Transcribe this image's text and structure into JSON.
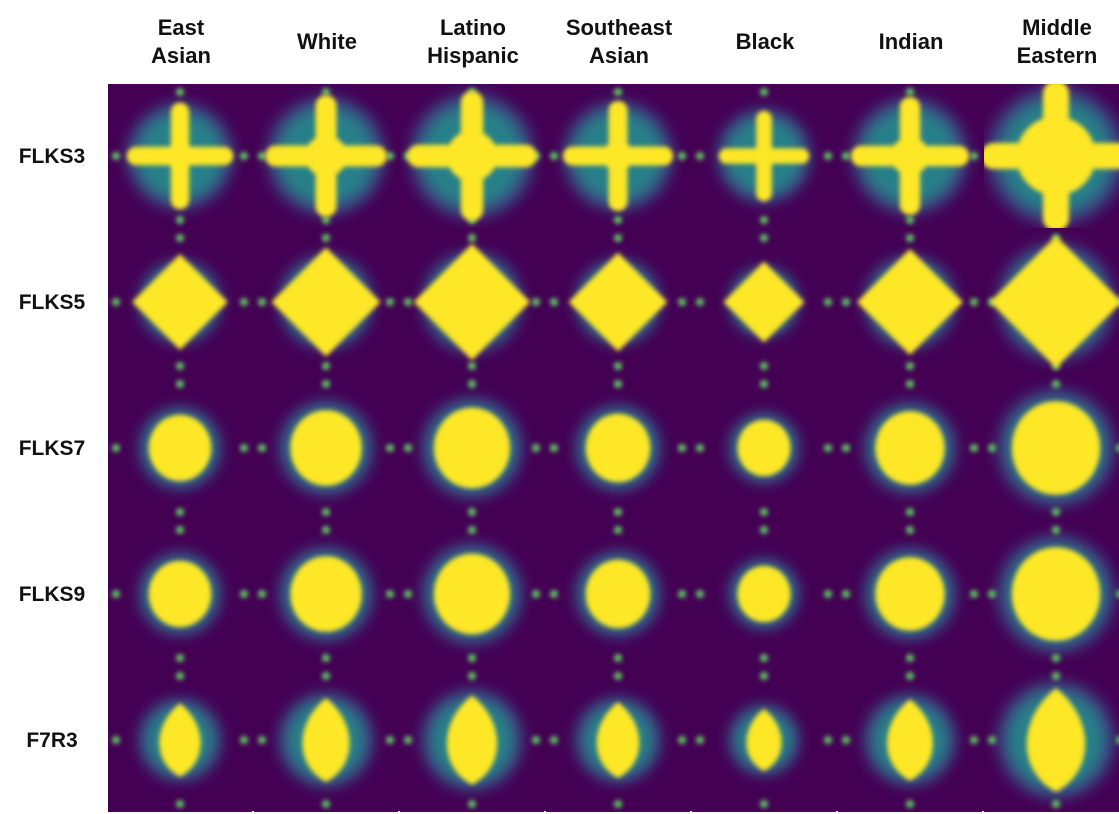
{
  "figure": {
    "columns": [
      {
        "label": "East\nAsian",
        "spread": 0.92
      },
      {
        "label": "White",
        "spread": 1.05
      },
      {
        "label": "Latino\nHispanic",
        "spread": 1.12
      },
      {
        "label": "Southeast\nAsian",
        "spread": 0.95
      },
      {
        "label": "Black",
        "spread": 0.78
      },
      {
        "label": "Indian",
        "spread": 1.02
      },
      {
        "label": "Middle\nEastern",
        "spread": 1.3
      }
    ],
    "rows": [
      {
        "label": "FLKS3",
        "style": "cross"
      },
      {
        "label": "FLKS5",
        "style": "diamond"
      },
      {
        "label": "FLKS7",
        "style": "round"
      },
      {
        "label": "FLKS9",
        "style": "round"
      },
      {
        "label": "F7R3",
        "style": "drop"
      }
    ],
    "colormap": [
      "#440154",
      "#3b528b",
      "#21918c",
      "#5ec962",
      "#fde725"
    ]
  }
}
